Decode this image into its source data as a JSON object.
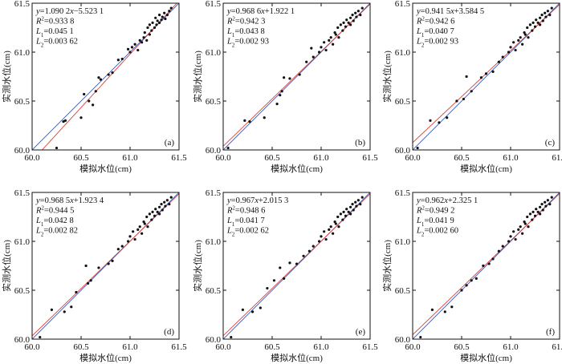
{
  "colors": {
    "fit_line": "#d9433a",
    "identity_line": "#3b59a6",
    "points": "#111111",
    "axes": "#111111"
  },
  "chart_data": [
    {
      "type": "scatter",
      "panel": "(a)",
      "xlabel": "模拟水位(cm)",
      "ylabel": "实测水位(cm)",
      "xlim": [
        60.0,
        61.5
      ],
      "ylim": [
        60.0,
        61.5
      ],
      "x_ticks": [
        "60.0",
        "60.5",
        "61.0",
        "61.5"
      ],
      "y_ticks": [
        "60.0",
        "60.5",
        "61.0",
        "61.5"
      ],
      "stats": [
        "y=1.090 2x−5.523 1",
        "R²=0.933 8",
        "L₁=0.045 1",
        "L₂=0.003 62"
      ],
      "fit": {
        "slope": 1.0902,
        "intercept": -5.5231
      },
      "identity_line": true,
      "x": [
        60.25,
        60.32,
        60.34,
        60.5,
        60.53,
        60.58,
        60.62,
        60.65,
        60.68,
        60.7,
        60.78,
        60.82,
        60.88,
        60.92,
        60.98,
        61.0,
        61.02,
        61.05,
        61.08,
        61.1,
        61.12,
        61.14,
        61.15,
        61.17,
        61.18,
        61.2,
        61.2,
        61.22,
        61.23,
        61.25,
        61.26,
        61.27,
        61.28,
        61.3,
        61.3,
        61.32,
        61.33,
        61.35,
        61.36,
        61.38,
        61.4,
        61.42
      ],
      "y": [
        60.02,
        60.29,
        60.3,
        60.33,
        60.57,
        60.5,
        60.46,
        60.6,
        60.74,
        60.72,
        60.77,
        60.79,
        60.92,
        60.93,
        61.03,
        61.0,
        61.05,
        61.08,
        61.02,
        61.12,
        61.1,
        61.15,
        61.2,
        61.12,
        61.25,
        61.18,
        61.28,
        61.22,
        61.3,
        61.25,
        61.35,
        61.28,
        61.32,
        61.3,
        61.38,
        61.33,
        61.36,
        61.4,
        61.34,
        61.38,
        61.42,
        61.45
      ]
    },
    {
      "type": "scatter",
      "panel": "(b)",
      "xlabel": "模拟水位(cm)",
      "ylabel": "实测水位(cm)",
      "xlim": [
        60.0,
        61.5
      ],
      "ylim": [
        60.0,
        61.5
      ],
      "x_ticks": [
        "60.0",
        "60.5",
        "61.0",
        "61.5"
      ],
      "y_ticks": [
        "60.0",
        "60.5",
        "61.0",
        "61.5"
      ],
      "stats": [
        "y=0.968 6x+1.922 1",
        "R²=0.942 3",
        "L₁=0.043 8",
        "L₂=0.002 93"
      ],
      "fit": {
        "slope": 0.9686,
        "intercept": 1.9221
      },
      "identity_line": true,
      "x": [
        60.05,
        60.22,
        60.27,
        60.42,
        60.55,
        60.58,
        60.6,
        60.62,
        60.68,
        60.78,
        60.85,
        60.9,
        60.92,
        60.98,
        61.0,
        61.03,
        61.05,
        61.08,
        61.1,
        61.12,
        61.14,
        61.15,
        61.17,
        61.18,
        61.2,
        61.22,
        61.23,
        61.25,
        61.26,
        61.28,
        61.3,
        61.3,
        61.32,
        61.33,
        61.35,
        61.36,
        61.38,
        61.4,
        61.42
      ],
      "y": [
        60.02,
        60.3,
        60.29,
        60.33,
        60.47,
        60.56,
        60.6,
        60.74,
        60.73,
        60.77,
        60.9,
        61.04,
        60.95,
        61.0,
        61.05,
        61.1,
        61.02,
        61.12,
        61.15,
        61.08,
        61.2,
        61.18,
        61.25,
        61.15,
        61.28,
        61.22,
        61.3,
        61.26,
        61.33,
        61.3,
        61.35,
        61.28,
        61.38,
        61.32,
        61.4,
        61.36,
        61.42,
        61.38,
        61.45
      ]
    },
    {
      "type": "scatter",
      "panel": "(c)",
      "xlabel": "模拟水位(cm)",
      "ylabel": "实测水位(cm)",
      "xlim": [
        60.0,
        61.5
      ],
      "ylim": [
        60.0,
        61.5
      ],
      "x_ticks": [
        "60.0",
        "60.5",
        "61.0",
        "61.5"
      ],
      "y_ticks": [
        "60.0",
        "60.5",
        "61.0",
        "61.5"
      ],
      "stats": [
        "y=0.941 5x+3.584 5",
        "R²=0.942 6",
        "L₁=0.040 7",
        "L₂=0.002 93"
      ],
      "fit": {
        "slope": 0.9415,
        "intercept": 3.5845
      },
      "identity_line": true,
      "x": [
        60.05,
        60.18,
        60.27,
        60.35,
        60.45,
        60.52,
        60.55,
        60.6,
        60.7,
        60.75,
        60.82,
        60.88,
        60.92,
        60.98,
        61.0,
        61.03,
        61.05,
        61.08,
        61.1,
        61.12,
        61.14,
        61.15,
        61.17,
        61.18,
        61.2,
        61.22,
        61.23,
        61.25,
        61.26,
        61.28,
        61.3,
        61.3,
        61.32,
        61.33,
        61.35,
        61.36,
        61.38,
        61.4,
        61.42
      ],
      "y": [
        60.02,
        60.3,
        60.28,
        60.33,
        60.5,
        60.52,
        60.75,
        60.6,
        60.74,
        60.78,
        60.8,
        60.9,
        60.95,
        61.0,
        61.05,
        61.1,
        61.02,
        61.12,
        61.15,
        61.08,
        61.2,
        61.18,
        61.25,
        61.15,
        61.28,
        61.22,
        61.3,
        61.26,
        61.33,
        61.3,
        61.35,
        61.28,
        61.38,
        61.32,
        61.4,
        61.36,
        61.42,
        61.38,
        61.45
      ]
    },
    {
      "type": "scatter",
      "panel": "(d)",
      "xlabel": "模拟水位(cm)",
      "ylabel": "实测水位(cm)",
      "xlim": [
        60.0,
        61.5
      ],
      "ylim": [
        60.0,
        61.5
      ],
      "x_ticks": [
        "60.0",
        "60.5",
        "61.0",
        "61.5"
      ],
      "y_ticks": [
        "60.0",
        "60.5",
        "61.0",
        "61.5"
      ],
      "stats": [
        "y=0.968 5x+1.923 4",
        "R²=0.944 5",
        "L₁=0.042 8",
        "L₂=0.002 82"
      ],
      "fit": {
        "slope": 0.9685,
        "intercept": 1.9234
      },
      "identity_line": true,
      "x": [
        60.08,
        60.2,
        60.33,
        60.4,
        60.45,
        60.55,
        60.57,
        60.6,
        60.68,
        60.78,
        60.82,
        60.88,
        60.92,
        60.98,
        61.0,
        61.03,
        61.05,
        61.08,
        61.1,
        61.12,
        61.14,
        61.15,
        61.17,
        61.18,
        61.2,
        61.22,
        61.23,
        61.25,
        61.26,
        61.28,
        61.3,
        61.3,
        61.32,
        61.33,
        61.35,
        61.36,
        61.38,
        61.4,
        61.42
      ],
      "y": [
        60.02,
        60.3,
        60.28,
        60.33,
        60.48,
        60.75,
        60.57,
        60.6,
        60.73,
        60.77,
        60.8,
        60.92,
        60.95,
        61.0,
        61.05,
        61.1,
        61.02,
        61.12,
        61.15,
        61.08,
        61.2,
        61.18,
        61.25,
        61.15,
        61.28,
        61.22,
        61.3,
        61.26,
        61.33,
        61.3,
        61.35,
        61.28,
        61.38,
        61.32,
        61.4,
        61.36,
        61.42,
        61.38,
        61.45
      ]
    },
    {
      "type": "scatter",
      "panel": "(e)",
      "xlabel": "模拟水位(cm)",
      "ylabel": "实测水位(cm)",
      "xlim": [
        60.0,
        61.5
      ],
      "ylim": [
        60.0,
        61.5
      ],
      "x_ticks": [
        "60.0",
        "60.5",
        "61.0",
        "61.5"
      ],
      "y_ticks": [
        "60.0",
        "60.5",
        "61.0",
        "61.5"
      ],
      "stats": [
        "y=0.967x+2.015 3",
        "R²=0.948 6",
        "L₁=0.041 7",
        "L₂=0.002 62"
      ],
      "fit": {
        "slope": 0.967,
        "intercept": 2.0153
      },
      "identity_line": true,
      "x": [
        60.08,
        60.2,
        60.3,
        60.38,
        60.45,
        60.52,
        60.58,
        60.62,
        60.68,
        60.75,
        60.82,
        60.88,
        60.92,
        60.98,
        61.0,
        61.03,
        61.05,
        61.08,
        61.1,
        61.12,
        61.14,
        61.15,
        61.17,
        61.18,
        61.2,
        61.22,
        61.23,
        61.25,
        61.26,
        61.28,
        61.3,
        61.3,
        61.32,
        61.33,
        61.35,
        61.36,
        61.38,
        61.4,
        61.42
      ],
      "y": [
        60.02,
        60.3,
        60.28,
        60.32,
        60.52,
        60.6,
        60.73,
        60.62,
        60.78,
        60.77,
        60.85,
        60.9,
        60.95,
        61.0,
        61.05,
        61.1,
        61.02,
        61.12,
        61.15,
        61.08,
        61.2,
        61.18,
        61.25,
        61.15,
        61.28,
        61.22,
        61.3,
        61.26,
        61.33,
        61.3,
        61.35,
        61.28,
        61.38,
        61.32,
        61.4,
        61.36,
        61.42,
        61.38,
        61.45
      ]
    },
    {
      "type": "scatter",
      "panel": "(f)",
      "xlabel": "模拟水位(cm)",
      "ylabel": "实测水位(cm)",
      "xlim": [
        60.0,
        61.5
      ],
      "ylim": [
        60.0,
        61.5
      ],
      "x_ticks": [
        "60.0",
        "60.5",
        "61.0",
        "61.5"
      ],
      "y_ticks": [
        "60.0",
        "60.5",
        "61.0",
        "61.5"
      ],
      "stats": [
        "y=0.962x+2.325 1",
        "R²=0.949 2",
        "L₁=0.041 9",
        "L₂=0.002 60"
      ],
      "fit": {
        "slope": 0.962,
        "intercept": 2.3251
      },
      "identity_line": true,
      "x": [
        60.08,
        60.2,
        60.33,
        60.4,
        60.5,
        60.55,
        60.6,
        60.65,
        60.72,
        60.78,
        60.82,
        60.88,
        60.92,
        60.98,
        61.0,
        61.03,
        61.05,
        61.08,
        61.1,
        61.12,
        61.14,
        61.15,
        61.17,
        61.18,
        61.2,
        61.22,
        61.23,
        61.25,
        61.26,
        61.28,
        61.3,
        61.3,
        61.32,
        61.33,
        61.35,
        61.36,
        61.38,
        61.4,
        61.42
      ],
      "y": [
        60.02,
        60.3,
        60.28,
        60.33,
        60.5,
        60.55,
        60.6,
        60.62,
        60.75,
        60.77,
        60.82,
        60.9,
        60.95,
        61.0,
        61.05,
        61.1,
        61.02,
        61.12,
        61.15,
        61.08,
        61.2,
        61.18,
        61.25,
        61.15,
        61.28,
        61.22,
        61.3,
        61.26,
        61.33,
        61.3,
        61.35,
        61.28,
        61.38,
        61.32,
        61.4,
        61.36,
        61.42,
        61.38,
        61.45
      ]
    }
  ]
}
